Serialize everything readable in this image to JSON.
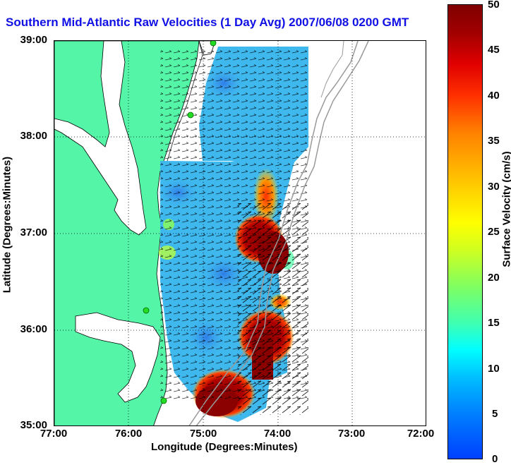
{
  "title": "Southern Mid-Atlantic Raw Velocities (1 Day Avg) 2007/06/08 0200 GMT",
  "axes": {
    "xlabel": "Longitude (Degrees:Minutes)",
    "ylabel": "Latitude (Degrees:Minutes)",
    "x_ticks": [
      "77:00",
      "76:00",
      "75:00",
      "74:00",
      "73:00",
      "72:00"
    ],
    "y_ticks": [
      "39:00",
      "38:00",
      "37:00",
      "36:00",
      "35:00"
    ]
  },
  "colorbar": {
    "title": "Surface Velocity (cm/s)",
    "ticks": [
      "50",
      "45",
      "40",
      "35",
      "30",
      "25",
      "20",
      "15",
      "10",
      "5",
      "0"
    ],
    "min": 0,
    "max": 50
  },
  "colors": {
    "title": "#1010e6",
    "land": "#55f5a8",
    "field_base": "#3fb8ee",
    "high_speed": "#8b0000",
    "coastline": "#000000",
    "bathymetry": "#999999",
    "station": "#22dd22"
  },
  "features": {
    "grid": "dotted",
    "stations": 5,
    "vectors": "black arrows"
  }
}
